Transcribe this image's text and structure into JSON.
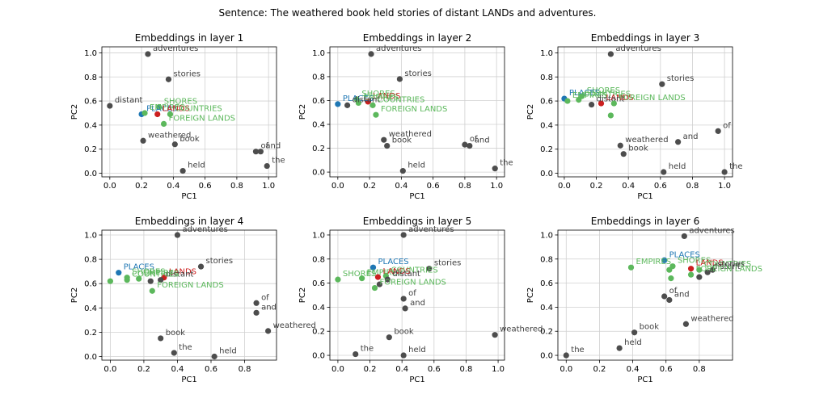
{
  "suptitle": "Sentence: The weathered book held stories of distant LANDs and adventures.",
  "colors": {
    "base": "#4d4d4d",
    "blue": "#1f77b4",
    "red": "#cc1f1f",
    "green": "#5cb85c",
    "grid": "#d0d0d0",
    "text_base": "#404040"
  },
  "chart_data": [
    {
      "type": "scatter",
      "title": "Embeddings in layer 1",
      "xlabel": "PC1",
      "ylabel": "PC2",
      "xlim": [
        -0.05,
        1.05
      ],
      "ylim": [
        -0.03,
        1.05
      ],
      "grid": true,
      "xticks": [
        "0.0",
        "0.2",
        "0.4",
        "0.6",
        "0.8",
        "1.0"
      ],
      "yticks": [
        "0.0",
        "0.2",
        "0.4",
        "0.6",
        "0.8",
        "1.0"
      ],
      "points": [
        {
          "label": "adventures",
          "x": 0.24,
          "y": 0.99,
          "group": "base"
        },
        {
          "label": "stories",
          "x": 0.37,
          "y": 0.78,
          "group": "base"
        },
        {
          "label": "distant",
          "x": 0.0,
          "y": 0.56,
          "group": "base"
        },
        {
          "label": "SHORES",
          "x": 0.31,
          "y": 0.55,
          "group": "green"
        },
        {
          "label": "PLACES",
          "x": 0.2,
          "y": 0.49,
          "group": "blue"
        },
        {
          "label": "EMPIRES",
          "x": 0.22,
          "y": 0.5,
          "group": "green"
        },
        {
          "label": "LANDS",
          "x": 0.3,
          "y": 0.49,
          "group": "red"
        },
        {
          "label": "COUNTRIES",
          "x": 0.38,
          "y": 0.49,
          "group": "green"
        },
        {
          "label": "FOREIGN LANDS",
          "x": 0.34,
          "y": 0.41,
          "group": "green"
        },
        {
          "label": "weathered",
          "x": 0.21,
          "y": 0.27,
          "group": "base"
        },
        {
          "label": "book",
          "x": 0.41,
          "y": 0.24,
          "group": "base"
        },
        {
          "label": "of",
          "x": 0.92,
          "y": 0.18,
          "group": "base"
        },
        {
          "label": "and",
          "x": 0.95,
          "y": 0.18,
          "group": "base"
        },
        {
          "label": "the",
          "x": 0.99,
          "y": 0.06,
          "group": "base"
        },
        {
          "label": "held",
          "x": 0.46,
          "y": 0.02,
          "group": "base"
        }
      ]
    },
    {
      "type": "scatter",
      "title": "Embeddings in layer 2",
      "xlabel": "PC1",
      "ylabel": "PC2",
      "xlim": [
        -0.05,
        1.05
      ],
      "ylim": [
        -0.04,
        1.05
      ],
      "grid": true,
      "xticks": [
        "0.0",
        "0.2",
        "0.4",
        "0.6",
        "0.8",
        "1.0"
      ],
      "yticks": [
        "0.0",
        "0.2",
        "0.4",
        "0.6",
        "0.8",
        "1.0"
      ],
      "points": [
        {
          "label": "adventures",
          "x": 0.21,
          "y": 0.99,
          "group": "base"
        },
        {
          "label": "stories",
          "x": 0.39,
          "y": 0.78,
          "group": "base"
        },
        {
          "label": "SHORES",
          "x": 0.12,
          "y": 0.61,
          "group": "green"
        },
        {
          "label": "LANDS",
          "x": 0.19,
          "y": 0.59,
          "group": "red"
        },
        {
          "label": "PLACES",
          "x": 0.0,
          "y": 0.57,
          "group": "blue"
        },
        {
          "label": "EMPIRES",
          "x": 0.13,
          "y": 0.58,
          "group": "green"
        },
        {
          "label": "distant",
          "x": 0.06,
          "y": 0.56,
          "group": "base"
        },
        {
          "label": "COUNTRIES",
          "x": 0.22,
          "y": 0.56,
          "group": "green"
        },
        {
          "label": "FOREIGN LANDS",
          "x": 0.24,
          "y": 0.48,
          "group": "green"
        },
        {
          "label": "weathered",
          "x": 0.29,
          "y": 0.27,
          "group": "base"
        },
        {
          "label": "book",
          "x": 0.31,
          "y": 0.22,
          "group": "base"
        },
        {
          "label": "of",
          "x": 0.8,
          "y": 0.23,
          "group": "base"
        },
        {
          "label": "and",
          "x": 0.83,
          "y": 0.22,
          "group": "base"
        },
        {
          "label": "held",
          "x": 0.41,
          "y": 0.01,
          "group": "base"
        },
        {
          "label": "the",
          "x": 0.99,
          "y": 0.03,
          "group": "base"
        }
      ]
    },
    {
      "type": "scatter",
      "title": "Embeddings in layer 3",
      "xlabel": "PC1",
      "ylabel": "PC2",
      "xlim": [
        -0.04,
        1.05
      ],
      "ylim": [
        -0.03,
        1.05
      ],
      "grid": true,
      "xticks": [
        "0.0",
        "0.2",
        "0.4",
        "0.6",
        "0.8",
        "1.0"
      ],
      "yticks": [
        "0.0",
        "0.2",
        "0.4",
        "0.6",
        "0.8",
        "1.0"
      ],
      "points": [
        {
          "label": "adventures",
          "x": 0.29,
          "y": 0.99,
          "group": "base"
        },
        {
          "label": "stories",
          "x": 0.61,
          "y": 0.74,
          "group": "base"
        },
        {
          "label": "SHORES",
          "x": 0.11,
          "y": 0.64,
          "group": "green"
        },
        {
          "label": "PLACES",
          "x": 0.0,
          "y": 0.62,
          "group": "blue"
        },
        {
          "label": "EMPIRES",
          "x": 0.02,
          "y": 0.6,
          "group": "green"
        },
        {
          "label": "COUNTRIES",
          "x": 0.09,
          "y": 0.61,
          "group": "green"
        },
        {
          "label": "LANDS",
          "x": 0.23,
          "y": 0.58,
          "group": "red"
        },
        {
          "label": "distant",
          "x": 0.17,
          "y": 0.57,
          "group": "base"
        },
        {
          "label": "FOREIGN LANDS",
          "x": 0.31,
          "y": 0.58,
          "group": "green"
        },
        {
          "label": "",
          "x": 0.29,
          "y": 0.48,
          "group": "green"
        },
        {
          "label": "weathered",
          "x": 0.35,
          "y": 0.23,
          "group": "base"
        },
        {
          "label": "book",
          "x": 0.37,
          "y": 0.16,
          "group": "base"
        },
        {
          "label": "and",
          "x": 0.71,
          "y": 0.26,
          "group": "base"
        },
        {
          "label": "of",
          "x": 0.96,
          "y": 0.35,
          "group": "base"
        },
        {
          "label": "held",
          "x": 0.62,
          "y": 0.01,
          "group": "base"
        },
        {
          "label": "the",
          "x": 1.0,
          "y": 0.01,
          "group": "base"
        }
      ]
    },
    {
      "type": "scatter",
      "title": "Embeddings in layer 4",
      "xlabel": "PC1",
      "ylabel": "PC2",
      "xlim": [
        -0.05,
        0.99
      ],
      "ylim": [
        -0.03,
        1.04
      ],
      "grid": true,
      "xticks": [
        "0.0",
        "0.2",
        "0.4",
        "0.6",
        "0.8"
      ],
      "yticks": [
        "0.0",
        "0.2",
        "0.4",
        "0.6",
        "0.8",
        "1.0"
      ],
      "points": [
        {
          "label": "adventures",
          "x": 0.4,
          "y": 1.0,
          "group": "base"
        },
        {
          "label": "stories",
          "x": 0.54,
          "y": 0.74,
          "group": "base"
        },
        {
          "label": "PLACES",
          "x": 0.05,
          "y": 0.69,
          "group": "blue"
        },
        {
          "label": "SHORES",
          "x": 0.1,
          "y": 0.65,
          "group": "green"
        },
        {
          "label": "EMPIRES",
          "x": 0.17,
          "y": 0.64,
          "group": "green"
        },
        {
          "label": "LANDS",
          "x": 0.32,
          "y": 0.65,
          "group": "red"
        },
        {
          "label": "distant",
          "x": 0.3,
          "y": 0.63,
          "group": "base"
        },
        {
          "label": "COUNTRIES",
          "x": 0.1,
          "y": 0.63,
          "group": "green"
        },
        {
          "label": "",
          "x": 0.0,
          "y": 0.62,
          "group": "green"
        },
        {
          "label": "",
          "x": 0.24,
          "y": 0.62,
          "group": "base"
        },
        {
          "label": "FOREIGN LANDS",
          "x": 0.25,
          "y": 0.54,
          "group": "green"
        },
        {
          "label": "of",
          "x": 0.87,
          "y": 0.44,
          "group": "base"
        },
        {
          "label": "and",
          "x": 0.87,
          "y": 0.36,
          "group": "base"
        },
        {
          "label": "weathered",
          "x": 0.94,
          "y": 0.21,
          "group": "base"
        },
        {
          "label": "book",
          "x": 0.3,
          "y": 0.15,
          "group": "base"
        },
        {
          "label": "the",
          "x": 0.38,
          "y": 0.03,
          "group": "base"
        },
        {
          "label": "held",
          "x": 0.62,
          "y": 0.0,
          "group": "base"
        }
      ]
    },
    {
      "type": "scatter",
      "title": "Embeddings in layer 5",
      "xlabel": "PC1",
      "ylabel": "PC2",
      "xlim": [
        -0.05,
        1.04
      ],
      "ylim": [
        -0.04,
        1.04
      ],
      "grid": true,
      "xticks": [
        "0.0",
        "0.2",
        "0.4",
        "0.6",
        "0.8",
        "1.0"
      ],
      "yticks": [
        "0.0",
        "0.2",
        "0.4",
        "0.6",
        "0.8",
        "1.0"
      ],
      "points": [
        {
          "label": "adventures",
          "x": 0.41,
          "y": 1.0,
          "group": "base"
        },
        {
          "label": "PLACES",
          "x": 0.22,
          "y": 0.73,
          "group": "blue"
        },
        {
          "label": "stories",
          "x": 0.57,
          "y": 0.72,
          "group": "base"
        },
        {
          "label": "SHORES",
          "x": 0.0,
          "y": 0.63,
          "group": "green"
        },
        {
          "label": "EMPIRES",
          "x": 0.15,
          "y": 0.64,
          "group": "green"
        },
        {
          "label": "LANDS",
          "x": 0.25,
          "y": 0.65,
          "group": "red"
        },
        {
          "label": "COUNTRIES",
          "x": 0.3,
          "y": 0.66,
          "group": "green"
        },
        {
          "label": "distant",
          "x": 0.31,
          "y": 0.63,
          "group": "base"
        },
        {
          "label": "",
          "x": 0.26,
          "y": 0.59,
          "group": "base"
        },
        {
          "label": "FOREIGN LANDS",
          "x": 0.23,
          "y": 0.56,
          "group": "green"
        },
        {
          "label": "of",
          "x": 0.41,
          "y": 0.47,
          "group": "base"
        },
        {
          "label": "and",
          "x": 0.42,
          "y": 0.39,
          "group": "base"
        },
        {
          "label": "book",
          "x": 0.32,
          "y": 0.15,
          "group": "base"
        },
        {
          "label": "weathered",
          "x": 0.98,
          "y": 0.17,
          "group": "base"
        },
        {
          "label": "the",
          "x": 0.11,
          "y": 0.01,
          "group": "base"
        },
        {
          "label": "held",
          "x": 0.41,
          "y": 0.0,
          "group": "base"
        }
      ]
    },
    {
      "type": "scatter",
      "title": "Embeddings in layer 6",
      "xlabel": "PC1",
      "ylabel": "PC2",
      "xlim": [
        -0.05,
        1.0
      ],
      "ylim": [
        -0.04,
        1.04
      ],
      "grid": true,
      "xticks": [
        "0.0",
        "0.2",
        "0.4",
        "0.6",
        "0.8"
      ],
      "yticks": [
        "0.0",
        "0.2",
        "0.4",
        "0.6",
        "0.8",
        "1.0"
      ],
      "points": [
        {
          "label": "adventures",
          "x": 0.71,
          "y": 0.99,
          "group": "base"
        },
        {
          "label": "PLACES",
          "x": 0.59,
          "y": 0.79,
          "group": "blue"
        },
        {
          "label": "EMPIRES",
          "x": 0.39,
          "y": 0.73,
          "group": "green"
        },
        {
          "label": "SHORES",
          "x": 0.64,
          "y": 0.74,
          "group": "green"
        },
        {
          "label": "LANDS",
          "x": 0.75,
          "y": 0.72,
          "group": "red"
        },
        {
          "label": "COUNTRIES",
          "x": 0.8,
          "y": 0.71,
          "group": "green"
        },
        {
          "label": "stories",
          "x": 0.88,
          "y": 0.71,
          "group": "base"
        },
        {
          "label": "distant",
          "x": 0.85,
          "y": 0.69,
          "group": "base"
        },
        {
          "label": "FOREIGN LANDS",
          "x": 0.75,
          "y": 0.67,
          "group": "green"
        },
        {
          "label": "",
          "x": 0.62,
          "y": 0.71,
          "group": "green"
        },
        {
          "label": "",
          "x": 0.63,
          "y": 0.64,
          "group": "green"
        },
        {
          "label": "",
          "x": 0.8,
          "y": 0.65,
          "group": "base"
        },
        {
          "label": "of",
          "x": 0.59,
          "y": 0.49,
          "group": "base"
        },
        {
          "label": "and",
          "x": 0.62,
          "y": 0.46,
          "group": "base"
        },
        {
          "label": "weathered",
          "x": 0.72,
          "y": 0.26,
          "group": "base"
        },
        {
          "label": "book",
          "x": 0.41,
          "y": 0.19,
          "group": "base"
        },
        {
          "label": "held",
          "x": 0.32,
          "y": 0.06,
          "group": "base"
        },
        {
          "label": "the",
          "x": 0.0,
          "y": 0.0,
          "group": "base"
        }
      ]
    }
  ]
}
